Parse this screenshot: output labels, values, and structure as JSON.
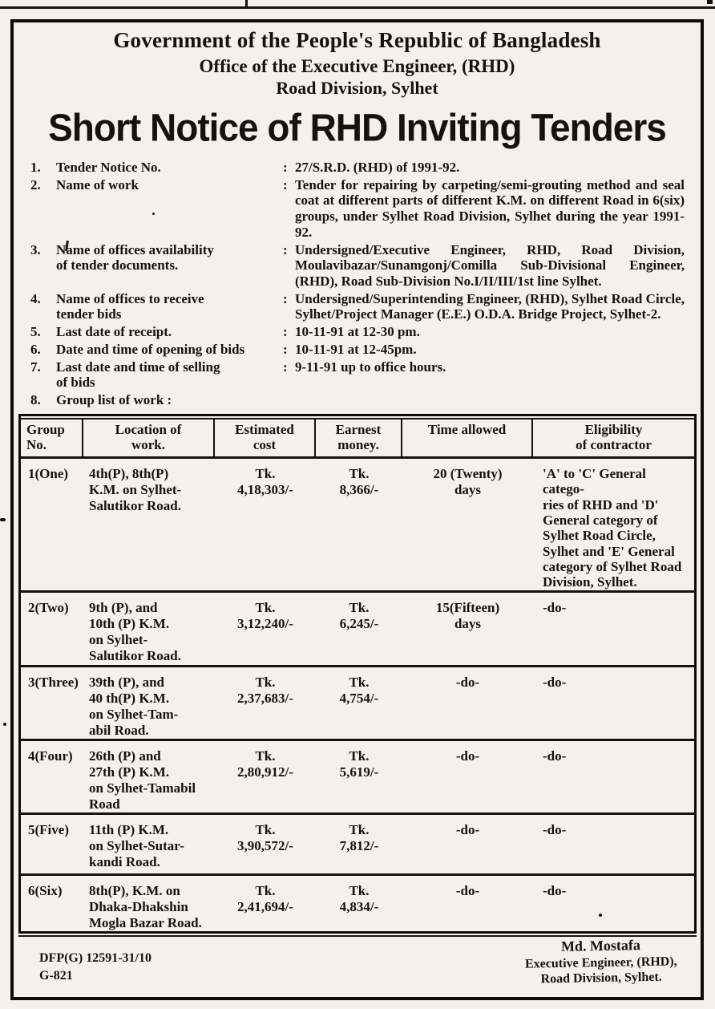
{
  "colors": {
    "paper": "#f3f1ec",
    "ink": "#16120e"
  },
  "header": {
    "government": "Government of the People's Republic of Bangladesh",
    "office": "Office of the Executive Engineer, (RHD)",
    "division": "Road Division, Sylhet",
    "headline": "Short Notice of RHD Inviting Tenders"
  },
  "notice_items": [
    {
      "num": "1.",
      "label": "Tender Notice No.",
      "colon": ":",
      "value": "27/S.R.D. (RHD) of 1991-92."
    },
    {
      "num": "2.",
      "label": "Name of work",
      "colon": ":",
      "value": "Tender for repairing by carpeting/semi-grouting method and seal coat at different parts of different K.M. on different Road in 6(six) groups, under Sylhet Road Division, Sylhet during the year 1991-92."
    },
    {
      "num": "3.",
      "label": "Name of offices availability\nof tender documents.",
      "colon": ":",
      "value": "Undersigned/Executive Engineer, RHD, Road Division, Moulavibazar/Sunamgonj/Comilla Sub-Divisional Engineer, (RHD), Road Sub-Division No.I/II/III/1st line Sylhet."
    },
    {
      "num": "4.",
      "label": "Name of offices to receive\ntender bids",
      "colon": ":",
      "value": "Undersigned/Superintending Engineer, (RHD), Sylhet Road Circle, Sylhet/Project Manager (E.E.) O.D.A. Bridge Project, Sylhet-2."
    },
    {
      "num": "5.",
      "label": "Last date of receipt.",
      "colon": ":",
      "value": "10-11-91 at 12-30 pm."
    },
    {
      "num": "6.",
      "label": "Date and time of opening of bids",
      "colon": ":",
      "value": "10-11-91 at 12-45pm."
    },
    {
      "num": "7.",
      "label": "Last date and time of selling\nof bids",
      "colon": ":",
      "value": "9-11-91 up to office hours."
    },
    {
      "num": "8.",
      "label": "Group list of work :",
      "colon": "",
      "value": ""
    }
  ],
  "table": {
    "headers": [
      "Group\nNo.",
      "Location of\nwork.",
      "Estimated\ncost",
      "Earnest\nmoney.",
      "Time allowed",
      "Eligibility\nof contractor"
    ],
    "rows": [
      {
        "cells": [
          "1(One)",
          "4th(P), 8th(P)\nK.M. on Sylhet-\nSalutikor Road.",
          "Tk.\n4,18,303/-",
          "Tk.\n8,366/-",
          "20 (Twenty)\ndays",
          "'A' to 'C' General catego-\nries of RHD and 'D'\nGeneral category of\nSylhet Road Circle,\nSylhet and 'E' General\ncategory of Sylhet Road\nDivision, Sylhet."
        ]
      },
      {
        "cells": [
          "2(Two)",
          "9th (P), and\n10th (P) K.M.\non Sylhet-\nSalutikor Road.",
          "Tk.\n3,12,240/-",
          "Tk.\n6,245/-",
          "15(Fifteen)\ndays",
          "-do-"
        ]
      },
      {
        "cells": [
          "3(Three)",
          "39th (P), and\n40 th(P) K.M.\non Sylhet-Tam-\nabil Road.",
          "Tk.\n2,37,683/-",
          "Tk.\n4,754/-",
          "-do-",
          "-do-"
        ]
      },
      {
        "cells": [
          "4(Four)",
          "26th (P) and\n27th (P) K.M.\non Sylhet-Tamabil\nRoad",
          "Tk.\n2,80,912/-",
          "Tk.\n5,619/-",
          "-do-",
          "-do-"
        ]
      },
      {
        "cells": [
          "5(Five)",
          "11th (P) K.M.\non Sylhet-Sutar-\nkandi Road.",
          "Tk.\n3,90,572/-",
          "Tk.\n7,812/-",
          "-do-",
          "-do-"
        ]
      },
      {
        "cells": [
          "6(Six)",
          "8th(P), K.M. on\nDhaka-Dhakshin\nMogla Bazar Road.",
          "Tk.\n2,41,694/-",
          "Tk.\n4,834/-",
          "-do-",
          "-do-"
        ]
      }
    ]
  },
  "footer": {
    "ref_line1": "DFP(G) 12591-31/10",
    "ref_line2": "G-821",
    "signature_name": "Md. Mostafa",
    "signature_title": "Executive Engineer, (RHD),",
    "signature_org": "Road Division, Sylhet."
  }
}
